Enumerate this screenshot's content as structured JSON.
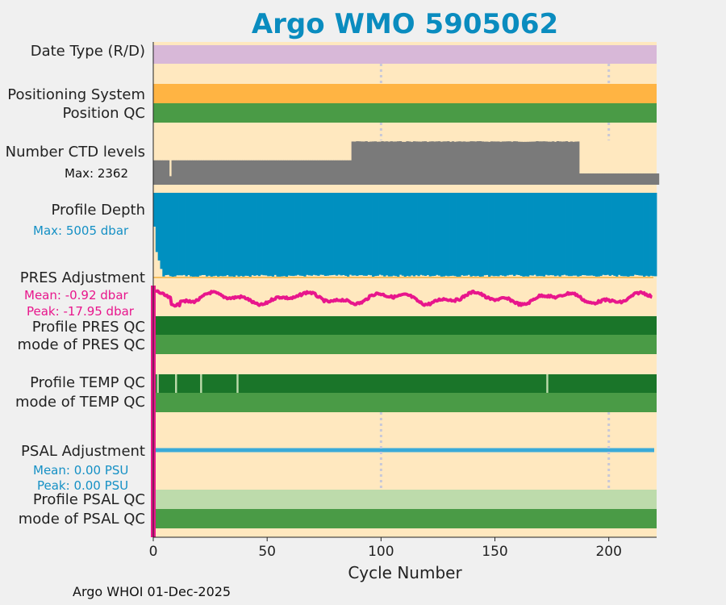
{
  "title": "Argo WMO 5905062",
  "footer": "Argo WHOI 01-Dec-2025",
  "colors": {
    "background": "#ffe8bf",
    "date_type": "#d8b8d8",
    "positioning": "#ffb443",
    "qc_mode": "#4a9b46",
    "qc_profile": "#1a7529",
    "qc_light": "#bddbab",
    "ctd": "#7a7a7a",
    "depth": "#0090c0",
    "pres_adj": "#e8168c",
    "psal_adj": "#3aaad8",
    "title": "#0a8cbf"
  },
  "rows": {
    "date_type": "Date Type (R/D)",
    "positioning_system": "Positioning System",
    "position_qc": "Position QC",
    "ctd_levels": "Number CTD levels",
    "ctd_max": "Max: 2362",
    "profile_depth": "Profile Depth",
    "depth_max": "Max: 5005 dbar",
    "pres_adjustment": "PRES Adjustment",
    "pres_mean": "Mean: -0.92 dbar",
    "pres_peak": "Peak: -17.95 dbar",
    "profile_pres_qc": "Profile PRES QC",
    "mode_pres_qc": "mode of PRES QC",
    "profile_temp_qc": "Profile TEMP QC",
    "mode_temp_qc": "mode of TEMP QC",
    "psal_adjustment": "PSAL Adjustment",
    "psal_mean": "Mean: 0.00 PSU",
    "psal_peak": "Peak: 0.00 PSU",
    "profile_psal_qc": "Profile PSAL QC",
    "mode_psal_qc": "mode of PSAL QC"
  },
  "chart_data": {
    "type": "bar",
    "xlabel": "Cycle Number",
    "xlim": [
      0,
      221
    ],
    "xticks": [
      0,
      50,
      100,
      150,
      200
    ],
    "gridlines_x": [
      100,
      200
    ],
    "ctd_levels": {
      "max": 2362,
      "segments": [
        {
          "from": 0,
          "to": 6,
          "value": 1300
        },
        {
          "from": 7,
          "to": 86,
          "value": 1300
        },
        {
          "from": 87,
          "to": 186,
          "value": 2320
        },
        {
          "from": 187,
          "to": 221,
          "value": 600
        }
      ],
      "dip_cycle": 7
    },
    "profile_depth": {
      "max_dbar": 5005,
      "typical_dbar": 4900,
      "first_cycles_dbar": [
        2000,
        3500,
        4000,
        4500
      ]
    },
    "pres_adjustment": {
      "mean_dbar": -0.92,
      "peak_dbar": -17.95
    },
    "temp_profile_qc_flags": [
      2,
      10,
      21,
      37,
      173
    ],
    "psal_adjustment": {
      "mean_psu": 0.0,
      "peak_psu": 0.0
    }
  }
}
